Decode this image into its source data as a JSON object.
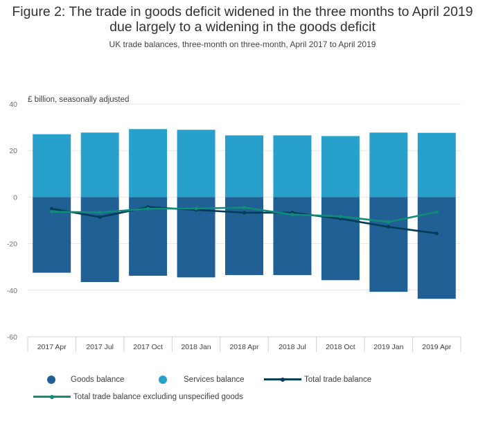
{
  "title": "Figure 2: The trade in goods deficit widened in the three months to April 2019 due largely to a widening in the goods deficit",
  "subtitle": "UK trade balances, three-month on three-month, April 2017 to April 2019",
  "colors": {
    "goods": "#206095",
    "services": "#27a0cc",
    "total": "#003c57",
    "total_excl": "#118c7b",
    "grid": "#e6e6e6",
    "axis_text": "#6d6e71"
  },
  "chart_data": {
    "type": "bar",
    "stacked": true,
    "ylabel": "£ billion, seasonally adjusted",
    "xlabel": "",
    "ylim": [
      -60,
      40
    ],
    "yticks": [
      40,
      20,
      0,
      -20,
      -40,
      -60
    ],
    "grid": true,
    "legend_position": "bottom",
    "categories": [
      "2017 Apr",
      "2017 Jul",
      "2017 Oct",
      "2018 Jan",
      "2018 Apr",
      "2018 Jul",
      "2018 Oct",
      "2019 Jan",
      "2019 Apr"
    ],
    "series": [
      {
        "name": "Goods balance",
        "kind": "bar",
        "values": [
          -32.5,
          -36.5,
          -33.8,
          -34.5,
          -33.5,
          -33.5,
          -35.7,
          -40.7,
          -43.7
        ]
      },
      {
        "name": "Services balance",
        "kind": "bar",
        "values": [
          27.0,
          27.7,
          29.2,
          28.9,
          26.5,
          26.5,
          26.2,
          27.7,
          27.6
        ]
      },
      {
        "name": "Total trade balance",
        "kind": "line",
        "values": [
          -5.0,
          -8.6,
          -4.3,
          -5.5,
          -6.7,
          -6.7,
          -9.3,
          -12.8,
          -15.6
        ]
      },
      {
        "name": "Total trade balance excluding unspecified goods",
        "kind": "line",
        "values": [
          -6.3,
          -6.6,
          -5.0,
          -4.9,
          -4.5,
          -7.5,
          -8.3,
          -10.7,
          -6.4
        ]
      }
    ]
  }
}
